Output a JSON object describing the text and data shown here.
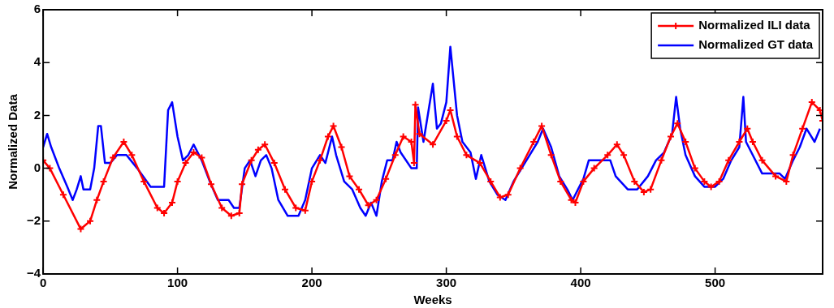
{
  "chart_data": {
    "type": "line",
    "xlabel": "Weeks",
    "ylabel": "Normalized Data",
    "xlim": [
      0,
      580
    ],
    "xticks": [
      0,
      100,
      200,
      300,
      400,
      500
    ],
    "ylim": [
      -4,
      6
    ],
    "yticks": [
      -4,
      -2,
      0,
      2,
      4,
      6
    ],
    "grid": false,
    "legend": "top right",
    "series": [
      {
        "name": "Normalized ILI data",
        "color": "#ff0000",
        "marker": "cross",
        "x": [
          0,
          5,
          15,
          28,
          35,
          40,
          45,
          52,
          60,
          66,
          75,
          85,
          90,
          96,
          100,
          106,
          112,
          118,
          125,
          133,
          140,
          146,
          148,
          155,
          160,
          165,
          172,
          180,
          188,
          195,
          200,
          206,
          212,
          216,
          222,
          228,
          235,
          242,
          248,
          255,
          262,
          268,
          274,
          276,
          277,
          280,
          290,
          300,
          303,
          308,
          315,
          325,
          333,
          340,
          346,
          355,
          365,
          371,
          378,
          385,
          393,
          396,
          402,
          410,
          420,
          427,
          432,
          440,
          447,
          452,
          460,
          467,
          472,
          478,
          485,
          492,
          497,
          503,
          510,
          518,
          524,
          528,
          535,
          545,
          553,
          558,
          565,
          572,
          578,
          580
        ],
        "values": [
          0.3,
          0,
          -1,
          -2.3,
          -2,
          -1.2,
          -0.5,
          0.4,
          1.0,
          0.5,
          -0.5,
          -1.5,
          -1.7,
          -1.3,
          -0.5,
          0.2,
          0.6,
          0.4,
          -0.6,
          -1.5,
          -1.8,
          -1.7,
          -0.6,
          0.3,
          0.7,
          0.9,
          0.2,
          -0.8,
          -1.5,
          -1.6,
          -0.5,
          0.3,
          1.2,
          1.6,
          0.8,
          -0.3,
          -0.8,
          -1.4,
          -1.2,
          -0.4,
          0.5,
          1.2,
          1.0,
          0.2,
          2.4,
          1.3,
          0.9,
          1.8,
          2.2,
          1.2,
          0.5,
          0.2,
          -0.5,
          -1.1,
          -1.0,
          0,
          1.0,
          1.6,
          0.5,
          -0.5,
          -1.2,
          -1.3,
          -0.5,
          0,
          0.5,
          0.9,
          0.5,
          -0.5,
          -0.9,
          -0.8,
          0.3,
          1.2,
          1.7,
          1.0,
          0,
          -0.5,
          -0.7,
          -0.5,
          0.3,
          1.0,
          1.5,
          1.0,
          0.3,
          -0.3,
          -0.5,
          0.5,
          1.5,
          2.5,
          2.2,
          1.8
        ]
      },
      {
        "name": "Normalized GT data",
        "color": "#0000ff",
        "marker": "none",
        "x": [
          0,
          3,
          6,
          9,
          12,
          18,
          22,
          25,
          28,
          30,
          35,
          38,
          41,
          43,
          46,
          50,
          55,
          62,
          70,
          80,
          90,
          93,
          96,
          100,
          104,
          108,
          112,
          118,
          124,
          130,
          138,
          142,
          146,
          150,
          154,
          158,
          162,
          166,
          170,
          175,
          182,
          190,
          195,
          200,
          206,
          210,
          215,
          218,
          224,
          230,
          236,
          240,
          244,
          248,
          252,
          256,
          260,
          263,
          266,
          270,
          274,
          278,
          279,
          283,
          290,
          293,
          296,
          300,
          303,
          308,
          312,
          318,
          322,
          326,
          332,
          338,
          344,
          350,
          356,
          362,
          368,
          372,
          378,
          384,
          390,
          394,
          398,
          402,
          406,
          412,
          422,
          426,
          435,
          442,
          450,
          456,
          462,
          468,
          471,
          474,
          478,
          485,
          492,
          500,
          506,
          512,
          518,
          521,
          523,
          528,
          535,
          548,
          552,
          558,
          563,
          568,
          574,
          578
        ],
        "values": [
          0.8,
          1.3,
          0.8,
          0.4,
          0,
          -0.7,
          -1.2,
          -0.8,
          -0.3,
          -0.8,
          -0.8,
          0,
          1.6,
          1.6,
          0.2,
          0.2,
          0.5,
          0.5,
          0,
          -0.7,
          -0.7,
          2.2,
          2.5,
          1.2,
          0.3,
          0.5,
          0.9,
          0.3,
          -0.5,
          -1.2,
          -1.2,
          -1.5,
          -1.5,
          0,
          0.3,
          -0.3,
          0.3,
          0.5,
          0,
          -1.2,
          -1.8,
          -1.8,
          -1.2,
          0,
          0.5,
          0.2,
          1.2,
          0.5,
          -0.5,
          -0.8,
          -1.5,
          -1.8,
          -1.3,
          -1.8,
          -0.5,
          0.3,
          0.3,
          1.0,
          0.6,
          0.3,
          0,
          0,
          2.3,
          1.0,
          3.2,
          1.5,
          1.7,
          2.5,
          4.6,
          2.0,
          1.0,
          0.6,
          -0.4,
          0.5,
          -0.5,
          -1.0,
          -1.2,
          -0.5,
          0,
          0.5,
          1.0,
          1.5,
          0.8,
          -0.3,
          -0.8,
          -1.2,
          -0.8,
          -0.4,
          0.3,
          0.3,
          0.3,
          -0.3,
          -0.8,
          -0.8,
          -0.3,
          0.3,
          0.6,
          1.3,
          2.7,
          1.5,
          0.5,
          -0.3,
          -0.7,
          -0.7,
          -0.4,
          0.3,
          0.8,
          2.7,
          1.0,
          0.5,
          -0.2,
          -0.2,
          -0.4,
          0.3,
          0.8,
          1.5,
          1.0,
          1.5
        ]
      }
    ]
  }
}
